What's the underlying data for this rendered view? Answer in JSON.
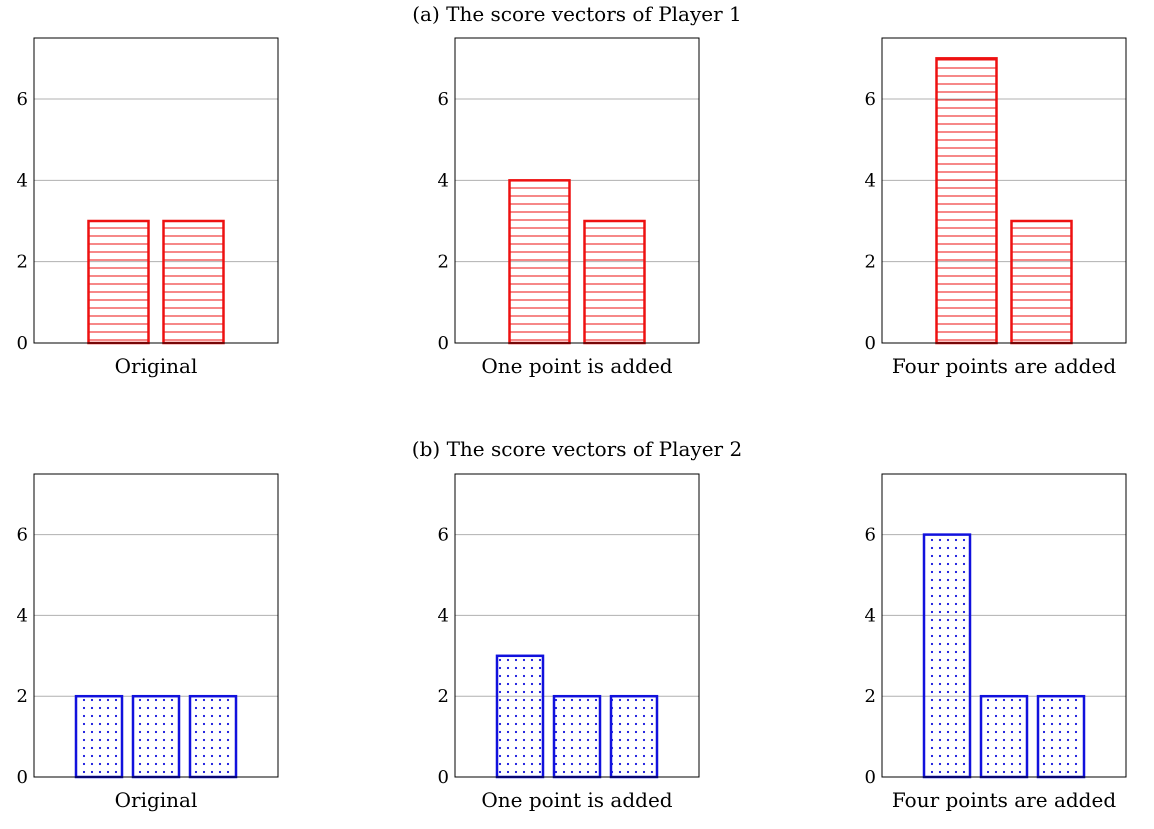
{
  "groups": [
    {
      "title": "(a) The score vectors of Player 1",
      "color": "#ee1111",
      "pattern": "horizontal-lines",
      "charts": [
        {
          "type": "bar",
          "xlabel": "Original",
          "values": [
            3,
            3
          ],
          "ylim": [
            0,
            7.5
          ],
          "yticks": [
            0,
            2,
            4,
            6
          ],
          "grid": true
        },
        {
          "type": "bar",
          "xlabel": "One point is added",
          "values": [
            4,
            3
          ],
          "ylim": [
            0,
            7.5
          ],
          "yticks": [
            0,
            2,
            4,
            6
          ],
          "grid": true
        },
        {
          "type": "bar",
          "xlabel": "Four points are added",
          "values": [
            7,
            3
          ],
          "ylim": [
            0,
            7.5
          ],
          "yticks": [
            0,
            2,
            4,
            6
          ],
          "grid": true
        }
      ]
    },
    {
      "title": "(b) The score vectors of Player 2",
      "color": "#1111dd",
      "pattern": "dots",
      "charts": [
        {
          "type": "bar",
          "xlabel": "Original",
          "values": [
            2,
            2,
            2
          ],
          "ylim": [
            0,
            7.5
          ],
          "yticks": [
            0,
            2,
            4,
            6
          ],
          "grid": true
        },
        {
          "type": "bar",
          "xlabel": "One point is added",
          "values": [
            3,
            2,
            2
          ],
          "ylim": [
            0,
            7.5
          ],
          "yticks": [
            0,
            2,
            4,
            6
          ],
          "grid": true
        },
        {
          "type": "bar",
          "xlabel": "Four points are added",
          "values": [
            6,
            2,
            2
          ],
          "ylim": [
            0,
            7.5
          ],
          "yticks": [
            0,
            2,
            4,
            6
          ],
          "grid": true
        }
      ]
    }
  ]
}
